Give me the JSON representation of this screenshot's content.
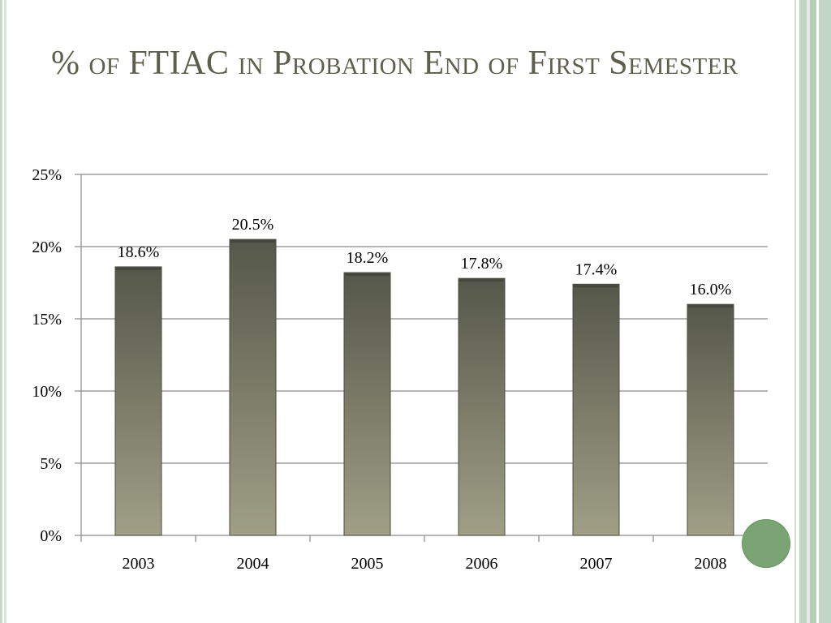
{
  "slide": {
    "title": "% of FTIAC in Probation End of First Semester"
  },
  "colors": {
    "bar_top": "#55574a",
    "bar_bottom": "#a09f86",
    "title": "#5e5e4c",
    "accent_dot": "#7ba474"
  },
  "chart_data": {
    "type": "bar",
    "title": "% of FTIAC in Probation End of First Semester",
    "xlabel": "",
    "ylabel": "",
    "categories": [
      "2003",
      "2004",
      "2005",
      "2006",
      "2007",
      "2008"
    ],
    "values": [
      18.6,
      20.5,
      18.2,
      17.8,
      17.4,
      16.0
    ],
    "data_labels": [
      "18.6%",
      "20.5%",
      "18.2%",
      "17.8%",
      "17.4%",
      "16.0%"
    ],
    "ylim": [
      0,
      25
    ],
    "yticks": [
      0,
      5,
      10,
      15,
      20,
      25
    ],
    "ytick_labels": [
      "0%",
      "5%",
      "10%",
      "15%",
      "20%",
      "25%"
    ],
    "grid": true,
    "legend": "none"
  }
}
